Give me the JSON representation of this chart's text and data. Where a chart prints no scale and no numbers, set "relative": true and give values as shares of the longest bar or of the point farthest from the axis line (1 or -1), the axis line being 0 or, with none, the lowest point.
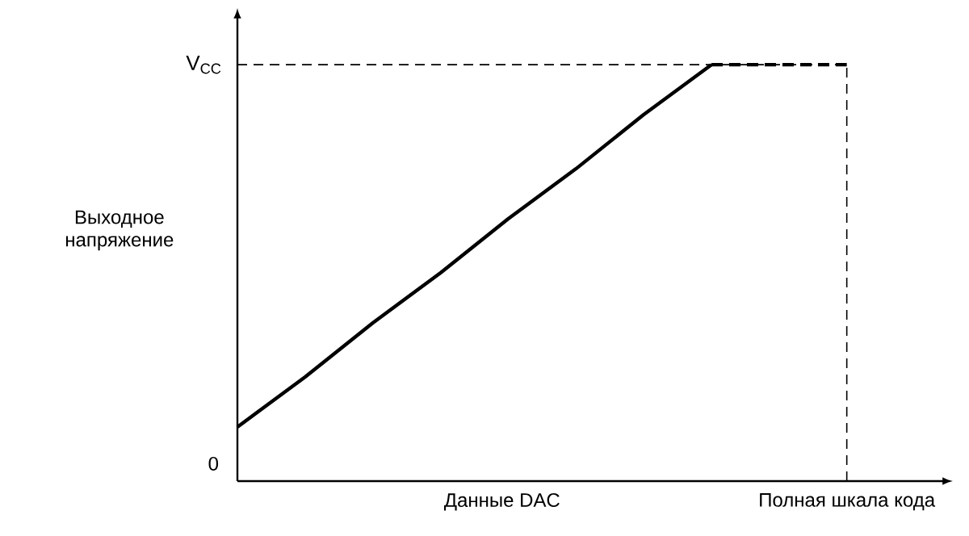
{
  "chart_data": {
    "type": "line",
    "relative": true,
    "xlabel": "Данные DAC",
    "ylabel": "Выходное напряжение",
    "categories": [
      null,
      null,
      null,
      null,
      null,
      null,
      null,
      null,
      null,
      null
    ],
    "series": [
      {
        "color": "#000000",
        "line_style": "solid",
        "values": [
          0.13,
          0.25,
          0.38,
          0.5,
          0.63,
          0.75,
          0.88,
          1,
          null,
          null
        ]
      },
      {
        "color": "#000000",
        "line_style": "dashed",
        "values": [
          null,
          null,
          null,
          null,
          null,
          null,
          null,
          1,
          1,
          1
        ]
      }
    ],
    "ref_lines": [
      {
        "axis": "y",
        "value": 1,
        "label": "V$_{CC}$",
        "line_style": "dashed",
        "color": "#000000"
      },
      {
        "axis": "x",
        "label": "Полная шкала кода",
        "line_style": "dashed",
        "color": "#000000"
      }
    ],
    "annotations": [
      "0"
    ],
    "marker": "none",
    "grid": false
  }
}
